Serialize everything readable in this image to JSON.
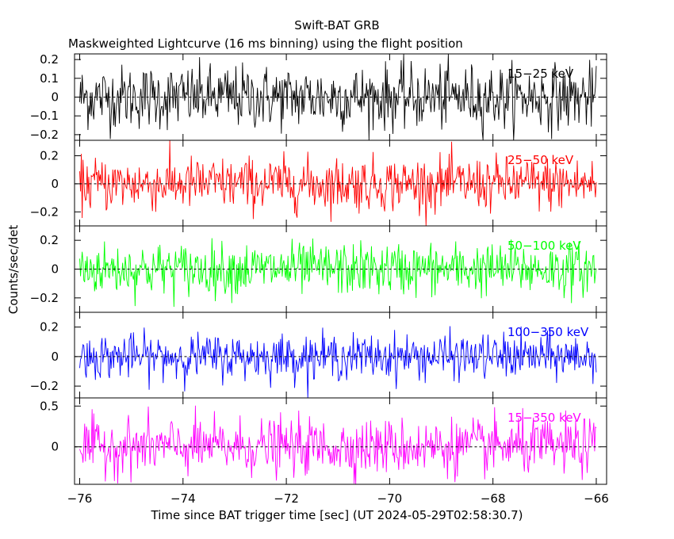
{
  "chart_data": {
    "type": "line",
    "title": "Swift-BAT GRB",
    "subtitle": "Maskweighted Lightcurve (16 ms binning) using the flight position",
    "xlabel": "Time since BAT trigger time [sec] (UT 2024-05-29T02:58:30.7)",
    "ylabel": "Counts/sec/det",
    "xlim": [
      -76.1,
      -65.8
    ],
    "x_ticks": [
      -76,
      -74,
      -72,
      -70,
      -68,
      -66
    ],
    "x_tick_labels": [
      "−76",
      "−74",
      "−72",
      "−70",
      "−68",
      "−66"
    ],
    "x_range": [
      -76.0,
      -66.0
    ],
    "bin_width": 0.016,
    "grid": false,
    "panels": [
      {
        "band": "15−25 keV",
        "color": "#000000",
        "ylim": [
          -0.23,
          0.23
        ],
        "y_ticks": [
          -0.2,
          -0.1,
          0,
          0.1,
          0.2
        ],
        "y_tick_labels": [
          "−0.2",
          "−0.1",
          "0",
          "0.1",
          "0.2"
        ],
        "noise_sigma": 0.085,
        "mean": 0.0
      },
      {
        "band": "25−50 keV",
        "color": "#ff0000",
        "ylim": [
          -0.3,
          0.31
        ],
        "y_ticks": [
          -0.2,
          0,
          0.2
        ],
        "y_tick_labels": [
          "−0.2",
          "0",
          "0.2"
        ],
        "noise_sigma": 0.095,
        "mean": 0.0
      },
      {
        "band": "50−100 keV",
        "color": "#00ff00",
        "ylim": [
          -0.3,
          0.3
        ],
        "y_ticks": [
          -0.2,
          0,
          0.2
        ],
        "y_tick_labels": [
          "−0.2",
          "0",
          "0.2"
        ],
        "noise_sigma": 0.09,
        "mean": 0.0
      },
      {
        "band": "100−350 keV",
        "color": "#0000ff",
        "ylim": [
          -0.28,
          0.3
        ],
        "y_ticks": [
          -0.2,
          0,
          0.2
        ],
        "y_tick_labels": [
          "−0.2",
          "0",
          "0.2"
        ],
        "noise_sigma": 0.075,
        "mean": 0.0
      },
      {
        "band": "15−350 keV",
        "color": "#ff00ff",
        "ylim": [
          -0.46,
          0.6
        ],
        "y_ticks": [
          0,
          0.5
        ],
        "y_tick_labels": [
          "0",
          "0.5"
        ],
        "noise_sigma": 0.17,
        "mean": 0.0
      }
    ]
  }
}
